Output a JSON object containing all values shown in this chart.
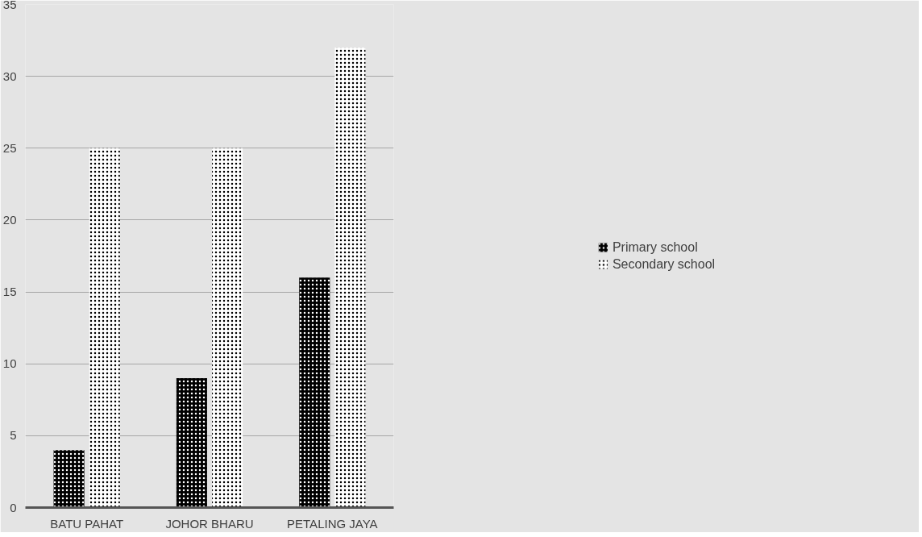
{
  "chart_data": {
    "type": "bar",
    "categories": [
      "BATU PAHAT",
      "JOHOR BHARU",
      "PETALING JAYA"
    ],
    "series": [
      {
        "name": "Primary school",
        "color": "#000000",
        "values": [
          4,
          9,
          16
        ]
      },
      {
        "name": "Secondary school",
        "color": "#ffffff",
        "values": [
          25,
          25,
          32
        ]
      }
    ],
    "ylim": [
      0,
      35
    ],
    "yticks": [
      0,
      5,
      10,
      15,
      20,
      25,
      30,
      35
    ],
    "grid": "y",
    "legend": "right"
  }
}
